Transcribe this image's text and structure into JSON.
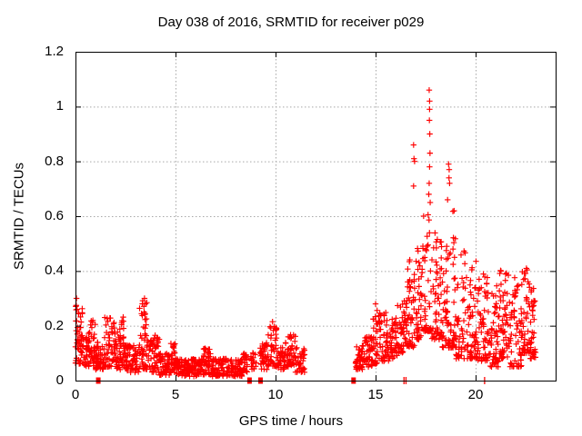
{
  "chart_data": {
    "type": "scatter",
    "title": "Day 038 of 2016, SRMTID for receiver p029",
    "xlabel": "GPS time / hours",
    "ylabel": "SRMTID / TECUs",
    "xlim": [
      0,
      24
    ],
    "ylim": [
      0,
      1.2
    ],
    "xticks": [
      0,
      5,
      10,
      15,
      20
    ],
    "xtick_labels": [
      "0",
      "5",
      "10",
      "15",
      "20"
    ],
    "yticks": [
      0,
      0.2,
      0.4,
      0.6,
      0.8,
      1.0,
      1.2
    ],
    "ytick_labels": [
      "0",
      "0.2",
      "0.4",
      "0.6",
      "0.8",
      "1",
      "1.2"
    ],
    "grid": "dotted, at major ticks",
    "legend": "none",
    "marker": "plus",
    "marker_color": "#ff0000",
    "grid_color": "#a8a8a8",
    "border_color": "#000000",
    "background_color": "#ffffff",
    "clusters_format": "[t_start_hours, t_end_hours, y_min_TECU, y_max_TECU, n_points]",
    "clusters": [
      [
        0.0,
        0.35,
        0.06,
        0.28,
        45
      ],
      [
        0.35,
        0.75,
        0.05,
        0.18,
        40
      ],
      [
        0.75,
        1.0,
        0.05,
        0.22,
        30
      ],
      [
        1.0,
        1.45,
        0.04,
        0.15,
        45
      ],
      [
        1.45,
        1.95,
        0.05,
        0.24,
        50
      ],
      [
        1.95,
        2.25,
        0.04,
        0.19,
        35
      ],
      [
        2.25,
        2.45,
        0.05,
        0.24,
        25
      ],
      [
        2.45,
        3.2,
        0.03,
        0.13,
        70
      ],
      [
        3.2,
        3.6,
        0.04,
        0.3,
        50
      ],
      [
        3.6,
        4.2,
        0.03,
        0.17,
        55
      ],
      [
        4.2,
        4.75,
        0.02,
        0.1,
        55
      ],
      [
        4.75,
        5.05,
        0.03,
        0.14,
        30
      ],
      [
        5.05,
        6.4,
        0.015,
        0.08,
        120
      ],
      [
        6.4,
        6.8,
        0.02,
        0.12,
        40
      ],
      [
        6.8,
        8.35,
        0.015,
        0.08,
        130
      ],
      [
        8.35,
        8.6,
        0.03,
        0.1,
        25
      ],
      [
        8.75,
        9.05,
        0.04,
        0.11,
        18
      ],
      [
        9.2,
        9.6,
        0.04,
        0.14,
        35
      ],
      [
        9.6,
        10.1,
        0.05,
        0.2,
        45
      ],
      [
        10.1,
        10.5,
        0.04,
        0.12,
        35
      ],
      [
        10.5,
        11.0,
        0.05,
        0.17,
        45
      ],
      [
        11.0,
        11.45,
        0.03,
        0.12,
        35
      ],
      [
        14.0,
        14.45,
        0.04,
        0.13,
        45
      ],
      [
        14.45,
        14.85,
        0.05,
        0.16,
        40
      ],
      [
        14.85,
        15.1,
        0.06,
        0.27,
        28
      ],
      [
        15.1,
        15.65,
        0.07,
        0.25,
        50
      ],
      [
        15.65,
        16.1,
        0.08,
        0.23,
        45
      ],
      [
        16.1,
        16.55,
        0.1,
        0.3,
        45
      ],
      [
        16.55,
        17.0,
        0.12,
        0.45,
        50
      ],
      [
        17.0,
        17.4,
        0.15,
        0.5,
        45
      ],
      [
        17.4,
        17.8,
        0.18,
        0.62,
        40
      ],
      [
        17.8,
        18.3,
        0.15,
        0.55,
        55
      ],
      [
        18.3,
        18.65,
        0.12,
        0.5,
        40
      ],
      [
        18.65,
        19.0,
        0.12,
        0.62,
        40
      ],
      [
        19.0,
        19.5,
        0.08,
        0.48,
        50
      ],
      [
        19.5,
        20.1,
        0.08,
        0.44,
        60
      ],
      [
        20.1,
        20.7,
        0.07,
        0.4,
        60
      ],
      [
        20.7,
        21.2,
        0.05,
        0.35,
        55
      ],
      [
        21.2,
        21.7,
        0.08,
        0.42,
        55
      ],
      [
        21.7,
        22.3,
        0.05,
        0.38,
        60
      ],
      [
        22.3,
        22.7,
        0.1,
        0.42,
        45
      ],
      [
        22.7,
        23.0,
        0.08,
        0.35,
        35
      ]
    ],
    "peak_points": [
      [
        0.05,
        0.3
      ],
      [
        0.08,
        0.26
      ],
      [
        3.45,
        0.3
      ],
      [
        3.5,
        0.28
      ],
      [
        9.85,
        0.215
      ],
      [
        15.0,
        0.28
      ],
      [
        16.9,
        0.86
      ],
      [
        16.92,
        0.81
      ],
      [
        16.95,
        0.8
      ],
      [
        16.9,
        0.71
      ],
      [
        17.68,
        1.06
      ],
      [
        17.7,
        1.02
      ],
      [
        17.7,
        0.99
      ],
      [
        17.69,
        0.95
      ],
      [
        17.71,
        0.9
      ],
      [
        17.72,
        0.83
      ],
      [
        17.7,
        0.78
      ],
      [
        17.68,
        0.72
      ],
      [
        17.66,
        0.68
      ],
      [
        17.73,
        0.65
      ],
      [
        18.65,
        0.79
      ],
      [
        18.68,
        0.77
      ],
      [
        18.67,
        0.74
      ],
      [
        18.7,
        0.72
      ],
      [
        18.6,
        0.66
      ]
    ],
    "zero_line_marks": {
      "squares_at_hours": [
        1.14,
        8.7,
        9.25,
        13.9
      ],
      "ticks_at_hours": [
        16.42,
        16.52,
        20.45
      ]
    }
  }
}
